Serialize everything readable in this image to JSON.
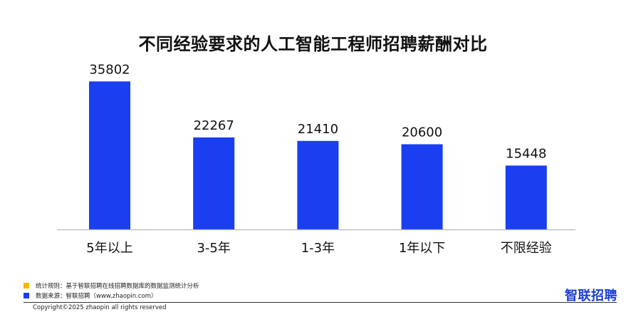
{
  "chart_data": {
    "type": "bar",
    "title": "不同经验要求的人工智能工程师招聘薪酬对比",
    "categories": [
      "5年以上",
      "3-5年",
      "1-3年",
      "1年以下",
      "不限经验"
    ],
    "values": [
      35802,
      22267,
      21410,
      20600,
      15448
    ],
    "ylim": [
      0,
      40000
    ],
    "xlabel": "",
    "ylabel": "",
    "grid": false,
    "legend": "none",
    "bar_color": "#1a3ff0",
    "data_labels": true
  },
  "footer": {
    "note1_color": "#f5b800",
    "note1": "统计规则：基于智联招聘在线招聘数据库的数据监测统计分析",
    "note2_color": "#1a3ff0",
    "note2": "数据来源：智联招聘（www.zhaopin.com）",
    "copyright": "Copyright©2025 zhaopin all rights reserved",
    "brand": "智联招聘"
  }
}
